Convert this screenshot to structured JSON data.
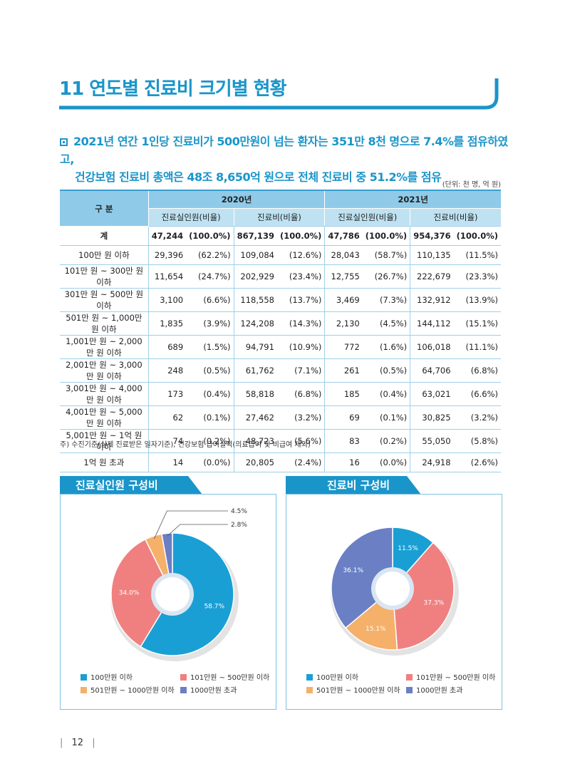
{
  "header": {
    "title": "11 연도별 진료비 크기별 현황",
    "summary_line1": "2021년 연간 1인당 진료비가 500만원이 넘는 환자는 351만 8천 명으로 7.4%를 점유하였고,",
    "summary_line2": "건강보험 진료비 총액은 48조 8,650억 원으로 전체 진료비 중 51.2%를 점유"
  },
  "table": {
    "unit": "(단위: 천 명, 억 원)",
    "header_category": "구 분",
    "years": [
      "2020년",
      "2021년"
    ],
    "sub_headers": [
      "진료실인원(비율)",
      "진료비(비율)",
      "진료실인원(비율)",
      "진료비(비율)"
    ],
    "rows": [
      {
        "cat": "계",
        "p20": "47,244",
        "pr20": "(100.0%)",
        "c20": "867,139",
        "cr20": "(100.0%)",
        "p21": "47,786",
        "pr21": "(100.0%)",
        "c21": "954,376",
        "cr21": "(100.0%)"
      },
      {
        "cat": "100만 원 이하",
        "p20": "29,396",
        "pr20": "(62.2%)",
        "c20": "109,084",
        "cr20": "(12.6%)",
        "p21": "28,043",
        "pr21": "(58.7%)",
        "c21": "110,135",
        "cr21": "(11.5%)"
      },
      {
        "cat": "101만 원 ~ 300만 원 이하",
        "p20": "11,654",
        "pr20": "(24.7%)",
        "c20": "202,929",
        "cr20": "(23.4%)",
        "p21": "12,755",
        "pr21": "(26.7%)",
        "c21": "222,679",
        "cr21": "(23.3%)"
      },
      {
        "cat": "301만 원 ~ 500만 원 이하",
        "p20": "3,100",
        "pr20": "(6.6%)",
        "c20": "118,558",
        "cr20": "(13.7%)",
        "p21": "3,469",
        "pr21": "(7.3%)",
        "c21": "132,912",
        "cr21": "(13.9%)"
      },
      {
        "cat": "501만 원 ~ 1,000만 원 이하",
        "p20": "1,835",
        "pr20": "(3.9%)",
        "c20": "124,208",
        "cr20": "(14.3%)",
        "p21": "2,130",
        "pr21": "(4.5%)",
        "c21": "144,112",
        "cr21": "(15.1%)"
      },
      {
        "cat": "1,001만 원 ~ 2,000만 원 이하",
        "p20": "689",
        "pr20": "(1.5%)",
        "c20": "94,791",
        "cr20": "(10.9%)",
        "p21": "772",
        "pr21": "(1.6%)",
        "c21": "106,018",
        "cr21": "(11.1%)"
      },
      {
        "cat": "2,001만 원 ~ 3,000만 원 이하",
        "p20": "248",
        "pr20": "(0.5%)",
        "c20": "61,762",
        "cr20": "(7.1%)",
        "p21": "261",
        "pr21": "(0.5%)",
        "c21": "64,706",
        "cr21": "(6.8%)"
      },
      {
        "cat": "3,001만 원 ~ 4,000만 원 이하",
        "p20": "173",
        "pr20": "(0.4%)",
        "c20": "58,818",
        "cr20": "(6.8%)",
        "p21": "185",
        "pr21": "(0.4%)",
        "c21": "63,021",
        "cr21": "(6.6%)"
      },
      {
        "cat": "4,001만 원 ~ 5,000만 원 이하",
        "p20": "62",
        "pr20": "(0.1%)",
        "c20": "27,462",
        "cr20": "(3.2%)",
        "p21": "69",
        "pr21": "(0.1%)",
        "c21": "30,825",
        "cr21": "(3.2%)"
      },
      {
        "cat": "5,001만 원 ~ 1억 원 이하",
        "p20": "74",
        "pr20": "(0.2%)",
        "c20": "48,723",
        "cr20": "(5.6%)",
        "p21": "83",
        "pr21": "(0.2%)",
        "c21": "55,050",
        "cr21": "(5.8%)"
      },
      {
        "cat": "1억 원 초과",
        "p20": "14",
        "pr20": "(0.0%)",
        "c20": "20,805",
        "cr20": "(2.4%)",
        "p21": "16",
        "pr21": "(0.0%)",
        "c21": "24,918",
        "cr21": "(2.6%)"
      }
    ],
    "note": "주) 수진기준(실제 진료받은 일자기준), 건강보험 급여실적(의료급여 및 비급여 제외)"
  },
  "chart_data": [
    {
      "type": "pie",
      "title": "진료실인원 구성비",
      "categories": [
        "100만원 이하",
        "101만원 ~ 500만원 이하",
        "501만원 ~ 1000만원 이하",
        "1000만원 초과"
      ],
      "values": [
        58.7,
        34.0,
        4.5,
        2.8
      ],
      "labels": [
        "58.7%",
        "34.0%",
        "4.5%",
        "2.8%"
      ],
      "colors": [
        "#1a9fd4",
        "#f08080",
        "#f5b06a",
        "#6a7fc4"
      ],
      "legend": "bottom"
    },
    {
      "type": "pie",
      "title": "진료비 구성비",
      "categories": [
        "100만원 이하",
        "101만원 ~ 500만원 이하",
        "501만원 ~ 1000만원 이하",
        "1000만원 초과"
      ],
      "values": [
        11.5,
        37.3,
        15.1,
        36.1
      ],
      "labels": [
        "11.5%",
        "37.3%",
        "15.1%",
        "36.1%"
      ],
      "colors": [
        "#1a9fd4",
        "#f08080",
        "#f5b06a",
        "#6a7fc4"
      ],
      "legend": "bottom"
    }
  ],
  "page_number": "12",
  "colors": {
    "accent": "#1a95c9",
    "header_dark": "#8fcbe9",
    "header_light": "#bfe2f2"
  }
}
